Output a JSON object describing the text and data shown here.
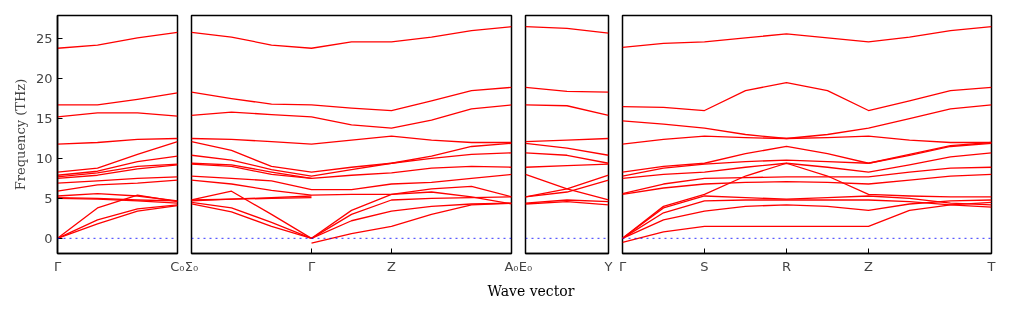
{
  "chart_data": [
    {
      "type": "line",
      "ylabel": "Frequency (THz)",
      "categories": [
        "Γ",
        null,
        null,
        "C₀"
      ],
      "ylim": [
        -1.9,
        27.9
      ],
      "yticks": [
        0,
        5,
        10,
        15,
        20,
        25
      ],
      "grid": false,
      "marker": "none",
      "line_style": "solid",
      "ref_lines": [
        {
          "axis": "y",
          "value": 0,
          "label": null,
          "color": "#0000ff",
          "line_style": "dotted"
        }
      ],
      "series": [
        {
          "color": "#ff0000",
          "values": [
            23.8,
            24.2,
            25.1,
            25.8
          ]
        },
        {
          "color": "#ff0000",
          "values": [
            16.7,
            16.7,
            17.4,
            18.2
          ]
        },
        {
          "color": "#ff0000",
          "values": [
            15.2,
            15.7,
            15.7,
            15.3
          ]
        },
        {
          "color": "#ff0000",
          "values": [
            11.8,
            12.0,
            12.4,
            12.5
          ]
        },
        {
          "color": "#ff0000",
          "values": [
            8.3,
            8.8,
            10.5,
            12.1
          ]
        },
        {
          "color": "#ff0000",
          "values": [
            7.9,
            8.4,
            9.6,
            10.3
          ]
        },
        {
          "color": "#ff0000",
          "values": [
            7.7,
            8.2,
            9.0,
            9.3
          ]
        },
        {
          "color": "#ff0000",
          "values": [
            7.5,
            7.9,
            8.7,
            9.2
          ]
        },
        {
          "color": "#ff0000",
          "values": [
            6.9,
            7.2,
            7.5,
            7.7
          ]
        },
        {
          "color": "#ff0000",
          "values": [
            5.9,
            6.7,
            6.9,
            7.3
          ]
        },
        {
          "color": "#ff0000",
          "values": [
            5.3,
            5.6,
            5.3,
            4.7
          ]
        },
        {
          "color": "#ff0000",
          "values": [
            5.1,
            5.0,
            4.8,
            4.7
          ]
        },
        {
          "color": "#ff0000",
          "values": [
            5.0,
            4.9,
            4.7,
            4.4
          ]
        },
        {
          "color": "#ff0000",
          "values": [
            0,
            3.8,
            5.4,
            4.6
          ]
        },
        {
          "color": "#ff0000",
          "values": [
            0,
            2.3,
            3.7,
            4.2
          ]
        },
        {
          "color": "#ff0000",
          "values": [
            0,
            1.8,
            3.4,
            4.1
          ]
        }
      ]
    },
    {
      "type": "line",
      "categories": [
        "Σ₀",
        null,
        null,
        "Γ",
        null,
        "Z",
        null,
        null,
        "A₀"
      ],
      "ylim": [
        -1.9,
        27.9
      ],
      "tick_labels": "x",
      "grid": false,
      "marker": "none",
      "line_style": "solid",
      "ref_lines": [
        {
          "axis": "y",
          "value": 0,
          "label": null,
          "color": "#0000ff",
          "line_style": "dotted"
        }
      ],
      "series": [
        {
          "color": "#ff0000",
          "values": [
            25.8,
            25.2,
            24.2,
            23.8,
            24.6,
            24.6,
            25.2,
            26.0,
            26.5
          ]
        },
        {
          "color": "#ff0000",
          "values": [
            18.3,
            17.5,
            16.8,
            16.7,
            16.3,
            16.0,
            17.2,
            18.5,
            18.9
          ]
        },
        {
          "color": "#ff0000",
          "values": [
            15.4,
            15.8,
            15.5,
            15.2,
            14.2,
            13.8,
            14.8,
            16.2,
            16.7
          ]
        },
        {
          "color": "#ff0000",
          "values": [
            12.5,
            12.4,
            12.1,
            11.8,
            12.3,
            12.8,
            12.3,
            12.0,
            12.0
          ]
        },
        {
          "color": "#ff0000",
          "values": [
            12.1,
            11.0,
            9.0,
            8.3,
            8.9,
            9.4,
            10.3,
            11.5,
            11.9
          ]
        },
        {
          "color": "#ff0000",
          "values": [
            10.4,
            9.8,
            8.6,
            7.8,
            8.6,
            9.4,
            10.0,
            10.5,
            10.7
          ]
        },
        {
          "color": "#ff0000",
          "values": [
            9.4,
            9.2,
            8.3,
            7.5,
            7.9,
            8.2,
            8.8,
            9.0,
            8.9
          ]
        },
        {
          "color": "#ff0000",
          "values": [
            9.3,
            9.0,
            8.0,
            7.5,
            null,
            null,
            null,
            null,
            null
          ]
        },
        {
          "color": "#ff0000",
          "values": [
            7.8,
            7.5,
            7.2,
            6.1,
            6.1,
            6.8,
            7.0,
            7.5,
            8.0
          ]
        },
        {
          "color": "#ff0000",
          "values": [
            7.3,
            6.8,
            6.0,
            5.4,
            5.5,
            5.5,
            6.2,
            6.5,
            5.2
          ]
        },
        {
          "color": "#ff0000",
          "values": [
            4.8,
            4.9,
            5.0,
            5.1,
            null,
            null,
            null,
            null,
            null
          ]
        },
        {
          "color": "#ff0000",
          "values": [
            4.7,
            4.9,
            5.1,
            5.3,
            null,
            null,
            null,
            null,
            null
          ]
        },
        {
          "color": "#ff0000",
          "values": [
            4.8,
            5.9,
            3.0,
            0,
            3.5,
            5.5,
            5.8,
            5.2,
            4.3
          ]
        },
        {
          "color": "#ff0000",
          "values": [
            4.5,
            3.8,
            2.0,
            0,
            3.0,
            4.8,
            5.0,
            5.1,
            5.2
          ]
        },
        {
          "color": "#ff0000",
          "values": [
            4.3,
            3.3,
            1.5,
            0,
            2.2,
            3.4,
            4.0,
            4.3,
            4.4
          ]
        },
        {
          "color": "#ff0000",
          "values": [
            null,
            null,
            null,
            -0.6,
            0.6,
            1.5,
            3.0,
            4.2,
            4.4
          ]
        }
      ]
    },
    {
      "type": "line",
      "xlabel": "Wave vector",
      "categories": [
        "E₀",
        null,
        "Y"
      ],
      "ylim": [
        -1.9,
        27.9
      ],
      "tick_labels": "x",
      "grid": false,
      "marker": "none",
      "line_style": "solid",
      "ref_lines": [
        {
          "axis": "y",
          "value": 0,
          "label": null,
          "color": "#0000ff",
          "line_style": "dotted"
        }
      ],
      "series": [
        {
          "color": "#ff0000",
          "values": [
            26.5,
            26.3,
            25.7
          ]
        },
        {
          "color": "#ff0000",
          "values": [
            18.9,
            18.4,
            18.3
          ]
        },
        {
          "color": "#ff0000",
          "values": [
            16.7,
            16.6,
            15.4
          ]
        },
        {
          "color": "#ff0000",
          "values": [
            12.1,
            12.3,
            12.5
          ]
        },
        {
          "color": "#ff0000",
          "values": [
            11.9,
            11.3,
            10.4
          ]
        },
        {
          "color": "#ff0000",
          "values": [
            10.7,
            10.4,
            9.4
          ]
        },
        {
          "color": "#ff0000",
          "values": [
            8.9,
            9.1,
            9.3
          ]
        },
        {
          "color": "#ff0000",
          "values": [
            8.0,
            6.2,
            4.8
          ]
        },
        {
          "color": "#ff0000",
          "values": [
            5.2,
            6.2,
            7.9
          ]
        },
        {
          "color": "#ff0000",
          "values": [
            5.2,
            5.8,
            7.3
          ]
        },
        {
          "color": "#ff0000",
          "values": [
            4.4,
            4.8,
            4.6
          ]
        },
        {
          "color": "#ff0000",
          "values": [
            4.3,
            4.6,
            4.2
          ]
        }
      ]
    },
    {
      "type": "line",
      "categories": [
        "Γ",
        null,
        "S",
        null,
        "R",
        null,
        "Z",
        null,
        null,
        "T"
      ],
      "ylim": [
        -1.9,
        27.9
      ],
      "tick_labels": "x",
      "grid": false,
      "marker": "none",
      "line_style": "solid",
      "ref_lines": [
        {
          "axis": "y",
          "value": 0,
          "label": null,
          "color": "#0000ff",
          "line_style": "dotted"
        }
      ],
      "series": [
        {
          "color": "#ff0000",
          "values": [
            23.9,
            24.4,
            24.6,
            25.1,
            25.6,
            25.1,
            24.6,
            25.2,
            26.0,
            26.5
          ]
        },
        {
          "color": "#ff0000",
          "values": [
            16.5,
            16.4,
            16.0,
            18.5,
            19.5,
            18.5,
            16.0,
            17.2,
            18.5,
            18.9
          ]
        },
        {
          "color": "#ff0000",
          "values": [
            14.7,
            14.3,
            13.8,
            13.0,
            12.5,
            13.0,
            13.8,
            15.0,
            16.2,
            16.7
          ]
        },
        {
          "color": "#ff0000",
          "values": [
            11.8,
            12.4,
            12.8,
            12.6,
            12.5,
            12.6,
            12.8,
            12.3,
            12.0,
            12.0
          ]
        },
        {
          "color": "#ff0000",
          "values": [
            8.3,
            9.0,
            9.4,
            10.6,
            11.5,
            10.6,
            9.4,
            10.4,
            11.5,
            11.9
          ]
        },
        {
          "color": "#ff0000",
          "values": [
            7.8,
            8.8,
            9.3,
            9.6,
            9.8,
            9.6,
            9.4,
            10.5,
            11.6,
            12.0
          ]
        },
        {
          "color": "#ff0000",
          "values": [
            7.5,
            8.0,
            8.3,
            8.9,
            9.4,
            8.9,
            8.3,
            9.2,
            10.2,
            10.7
          ]
        },
        {
          "color": "#ff0000",
          "values": [
            5.6,
            6.8,
            7.5,
            7.6,
            7.7,
            7.7,
            7.7,
            8.3,
            8.8,
            8.9
          ]
        },
        {
          "color": "#ff0000",
          "values": [
            5.5,
            6.3,
            6.8,
            7.0,
            7.1,
            7.0,
            6.8,
            7.3,
            7.8,
            8.0
          ]
        },
        {
          "color": "#ff0000",
          "values": [
            0,
            4.0,
            5.5,
            7.8,
            9.4,
            7.8,
            5.5,
            5.3,
            5.2,
            5.2
          ]
        },
        {
          "color": "#ff0000",
          "values": [
            0,
            3.8,
            5.3,
            5.1,
            4.9,
            5.1,
            5.3,
            5.0,
            4.4,
            4.2
          ]
        },
        {
          "color": "#ff0000",
          "values": [
            0,
            3.2,
            4.7,
            4.8,
            4.8,
            4.8,
            4.8,
            4.6,
            4.2,
            3.9
          ]
        },
        {
          "color": "#ff0000",
          "values": [
            0,
            2.3,
            3.4,
            4.0,
            4.2,
            4.0,
            3.5,
            4.3,
            4.7,
            4.8
          ]
        },
        {
          "color": "#ff0000",
          "values": [
            -0.5,
            0.8,
            1.5,
            1.5,
            1.5,
            1.5,
            1.5,
            3.5,
            4.2,
            4.5
          ]
        }
      ]
    }
  ]
}
